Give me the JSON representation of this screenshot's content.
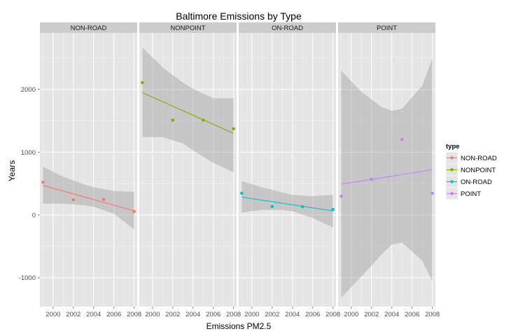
{
  "chart_data": {
    "type": "scatter",
    "title": "Baltimore Emissions by Type",
    "xlabel": "Emissions PM2.5",
    "ylabel": "Years",
    "xlim": [
      1998.7,
      2008.3
    ],
    "ylim": [
      -1460,
      2900
    ],
    "x_ticks": [
      2000,
      2002,
      2004,
      2006,
      2008
    ],
    "y_ticks": [
      -1000,
      0,
      1000,
      2000
    ],
    "legend_title": "type",
    "legend_position": "right",
    "grid": true,
    "series": [
      {
        "name": "NON-ROAD",
        "color": "#F8766D",
        "points": [
          [
            1999,
            522
          ],
          [
            2002,
            241
          ],
          [
            2005,
            248
          ],
          [
            2008,
            55
          ]
        ],
        "trend": [
          [
            1999,
            470
          ],
          [
            2008,
            65
          ]
        ],
        "band_upper": [
          [
            1999,
            770
          ],
          [
            2001,
            610
          ],
          [
            2003,
            490
          ],
          [
            2004,
            440
          ],
          [
            2006,
            380
          ],
          [
            2008,
            370
          ]
        ],
        "band_lower": [
          [
            1999,
            180
          ],
          [
            2001,
            180
          ],
          [
            2003,
            155
          ],
          [
            2004,
            130
          ],
          [
            2006,
            20
          ],
          [
            2008,
            -230
          ]
        ]
      },
      {
        "name": "NONPOINT",
        "color": "#7CAE00",
        "points": [
          [
            1999,
            2108
          ],
          [
            2002,
            1510
          ],
          [
            2005,
            1510
          ],
          [
            2008,
            1373
          ]
        ],
        "trend": [
          [
            1999,
            1950
          ],
          [
            2008,
            1300
          ]
        ],
        "band_upper": [
          [
            1999,
            2670
          ],
          [
            2001,
            2350
          ],
          [
            2003,
            2110
          ],
          [
            2004,
            2010
          ],
          [
            2006,
            1860
          ],
          [
            2008,
            1860
          ]
        ],
        "band_lower": [
          [
            1999,
            1240
          ],
          [
            2001,
            1240
          ],
          [
            2003,
            1140
          ],
          [
            2004,
            1030
          ],
          [
            2006,
            830
          ],
          [
            2008,
            680
          ]
        ]
      },
      {
        "name": "ON-ROAD",
        "color": "#00BFC4",
        "points": [
          [
            1999,
            347
          ],
          [
            2002,
            134
          ],
          [
            2005,
            130
          ],
          [
            2008,
            88
          ]
        ],
        "trend": [
          [
            1999,
            285
          ],
          [
            2008,
            65
          ]
        ],
        "band_upper": [
          [
            1999,
            540
          ],
          [
            2001,
            440
          ],
          [
            2003,
            360
          ],
          [
            2004,
            320
          ],
          [
            2006,
            300
          ],
          [
            2008,
            320
          ]
        ],
        "band_lower": [
          [
            1999,
            40
          ],
          [
            2001,
            80
          ],
          [
            2003,
            80
          ],
          [
            2004,
            60
          ],
          [
            2006,
            -50
          ],
          [
            2008,
            -200
          ]
        ]
      },
      {
        "name": "POINT",
        "color": "#C77CFF",
        "points": [
          [
            1999,
            297
          ],
          [
            2002,
            569
          ],
          [
            2005,
            1202
          ],
          [
            2008,
            345
          ]
        ],
        "trend": [
          [
            1999,
            490
          ],
          [
            2008,
            720
          ]
        ],
        "band_upper": [
          [
            1999,
            2300
          ],
          [
            2001,
            1960
          ],
          [
            2003,
            1720
          ],
          [
            2004,
            1660
          ],
          [
            2005,
            1690
          ],
          [
            2007,
            2060
          ],
          [
            2008,
            2500
          ]
        ],
        "band_lower": [
          [
            1999,
            -1320
          ],
          [
            2001,
            -980
          ],
          [
            2003,
            -630
          ],
          [
            2004,
            -470
          ],
          [
            2005,
            -440
          ],
          [
            2007,
            -730
          ],
          [
            2008,
            -1060
          ]
        ]
      }
    ]
  }
}
